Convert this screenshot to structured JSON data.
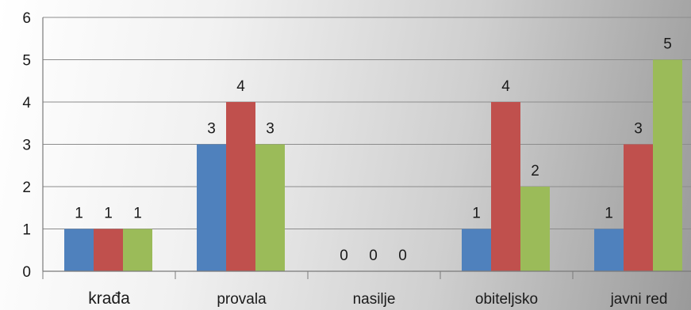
{
  "chart_data": {
    "type": "bar",
    "title": "",
    "xlabel": "",
    "ylabel": "",
    "ylim": [
      0,
      6
    ],
    "yticks": [
      "0",
      "1",
      "2",
      "3",
      "4",
      "5",
      "6"
    ],
    "grid": true,
    "legend": "none",
    "categories": [
      "krađa",
      "provala",
      "nasilje",
      "obiteljsko",
      "javni red"
    ],
    "series": [
      {
        "values": [
          1,
          3,
          0,
          1,
          1
        ],
        "color": "#4F81BD"
      },
      {
        "values": [
          1,
          4,
          0,
          4,
          3
        ],
        "color": "#C0504D"
      },
      {
        "values": [
          1,
          3,
          0,
          2,
          5
        ],
        "color": "#9BBB59"
      }
    ]
  }
}
